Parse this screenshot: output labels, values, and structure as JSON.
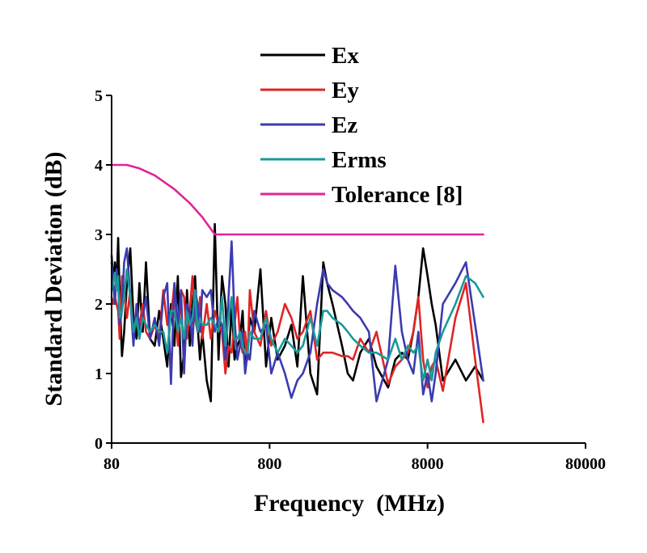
{
  "chart_data": {
    "type": "line",
    "xlabel": "Frequency  (MHz)",
    "ylabel": "Standard Deviation (dB)",
    "xscale": "log",
    "xlim": [
      80,
      80000
    ],
    "ylim": [
      0,
      5
    ],
    "xticks": [
      80,
      800,
      8000,
      80000
    ],
    "xtick_labels": [
      "80",
      "800",
      "8000",
      "80000"
    ],
    "yticks": [
      0,
      1,
      2,
      3,
      4,
      5
    ],
    "ytick_labels": [
      "0",
      "1",
      "2",
      "3",
      "4",
      "5"
    ],
    "grid": false,
    "legend_position": "top-center",
    "series": [
      {
        "name": "Ex",
        "color": "#000000",
        "x": [
          80,
          82,
          84,
          86,
          88,
          90,
          93,
          96,
          100,
          105,
          110,
          115,
          120,
          126,
          132,
          140,
          150,
          160,
          170,
          180,
          190,
          200,
          210,
          220,
          230,
          240,
          250,
          260,
          270,
          280,
          290,
          300,
          320,
          340,
          360,
          380,
          400,
          420,
          440,
          460,
          480,
          500,
          520,
          540,
          560,
          580,
          600,
          640,
          700,
          760,
          820,
          900,
          1000,
          1100,
          1200,
          1300,
          1450,
          1600,
          1750,
          1850,
          2000,
          2300,
          2500,
          2700,
          3000,
          3400,
          3800,
          4500,
          5000,
          5500,
          6000,
          6500,
          7000,
          7500,
          8000,
          8500,
          9000,
          10000,
          12000,
          14000,
          16000,
          18000
        ],
        "y": [
          2.7,
          2.3,
          2.6,
          2.2,
          2.95,
          2.1,
          1.25,
          1.6,
          2.3,
          2.8,
          1.8,
          1.5,
          2.3,
          1.6,
          2.6,
          1.5,
          1.4,
          1.9,
          1.5,
          1.1,
          2.0,
          1.4,
          2.4,
          0.95,
          1.3,
          2.2,
          1.4,
          2.0,
          2.4,
          1.7,
          1.2,
          1.6,
          0.9,
          0.6,
          3.15,
          1.2,
          2.4,
          2.0,
          1.1,
          2.0,
          1.2,
          1.4,
          1.5,
          1.9,
          1.1,
          1.3,
          1.8,
          1.6,
          2.5,
          1.1,
          1.8,
          1.2,
          1.4,
          1.7,
          1.1,
          2.4,
          1.0,
          0.7,
          2.6,
          2.3,
          2.0,
          1.4,
          1.0,
          0.9,
          1.3,
          1.5,
          1.1,
          0.8,
          1.2,
          1.3,
          1.2,
          1.6,
          2.1,
          2.8,
          2.4,
          2.0,
          1.7,
          0.9,
          1.2,
          0.9,
          1.1,
          0.9
        ]
      },
      {
        "name": "Ey",
        "color": "#e02424",
        "x": [
          80,
          82,
          84,
          86,
          88,
          90,
          93,
          96,
          100,
          105,
          110,
          115,
          120,
          126,
          132,
          140,
          150,
          160,
          170,
          180,
          190,
          200,
          210,
          220,
          230,
          240,
          250,
          260,
          270,
          280,
          290,
          300,
          320,
          340,
          360,
          380,
          400,
          420,
          440,
          460,
          480,
          500,
          520,
          540,
          560,
          580,
          600,
          640,
          700,
          760,
          820,
          900,
          1000,
          1100,
          1200,
          1300,
          1450,
          1600,
          1750,
          1850,
          2000,
          2300,
          2500,
          2700,
          3000,
          3400,
          3800,
          4500,
          5000,
          5500,
          6000,
          6500,
          7000,
          7500,
          8000,
          8500,
          9000,
          10000,
          12000,
          14000,
          16000,
          18000
        ],
        "y": [
          2.1,
          2.0,
          2.1,
          2.0,
          1.9,
          1.5,
          2.4,
          2.2,
          1.8,
          2.2,
          1.5,
          1.9,
          1.7,
          2.0,
          1.6,
          1.5,
          1.7,
          1.5,
          2.2,
          1.7,
          1.8,
          2.3,
          1.4,
          2.2,
          2.1,
          1.5,
          1.9,
          2.4,
          1.8,
          1.6,
          2.1,
          1.5,
          2.0,
          1.5,
          1.9,
          1.7,
          1.6,
          1.0,
          1.4,
          1.3,
          1.7,
          2.1,
          1.5,
          1.3,
          1.6,
          1.2,
          2.2,
          1.6,
          1.4,
          1.9,
          1.4,
          1.6,
          2.0,
          1.8,
          1.5,
          1.6,
          1.9,
          1.2,
          1.3,
          1.3,
          1.3,
          1.25,
          1.25,
          1.2,
          1.5,
          1.3,
          1.6,
          0.85,
          1.1,
          1.2,
          1.3,
          1.6,
          2.1,
          1.2,
          0.8,
          1.1,
          1.2,
          0.75,
          1.8,
          2.3,
          1.2,
          0.3
        ]
      },
      {
        "name": "Ez",
        "color": "#3b3bb0",
        "x": [
          80,
          82,
          84,
          86,
          88,
          90,
          93,
          96,
          100,
          105,
          110,
          115,
          120,
          126,
          132,
          140,
          150,
          160,
          170,
          180,
          190,
          200,
          210,
          220,
          230,
          240,
          250,
          260,
          270,
          280,
          290,
          300,
          320,
          340,
          360,
          380,
          400,
          420,
          440,
          460,
          480,
          500,
          520,
          540,
          560,
          580,
          600,
          640,
          700,
          760,
          820,
          900,
          1000,
          1100,
          1200,
          1300,
          1450,
          1600,
          1750,
          1850,
          2000,
          2300,
          2500,
          2700,
          3000,
          3400,
          3800,
          4500,
          5000,
          5500,
          6000,
          6500,
          7000,
          7500,
          8000,
          8500,
          9000,
          10000,
          12000,
          14000,
          16000,
          18000
        ],
        "y": [
          2.6,
          2.3,
          2.0,
          2.5,
          2.3,
          1.7,
          1.9,
          2.6,
          2.8,
          2.1,
          1.4,
          2.0,
          1.6,
          1.8,
          2.1,
          1.5,
          1.8,
          1.4,
          2.1,
          2.3,
          0.85,
          2.3,
          1.7,
          2.2,
          1.0,
          2.0,
          1.9,
          1.4,
          2.2,
          2.0,
          1.6,
          2.2,
          2.1,
          2.2,
          1.6,
          1.8,
          1.7,
          1.2,
          2.1,
          2.9,
          1.8,
          1.2,
          1.4,
          1.6,
          1.0,
          1.3,
          1.2,
          1.9,
          1.6,
          1.7,
          1.0,
          1.3,
          1.0,
          0.65,
          0.9,
          1.0,
          1.3,
          2.0,
          2.5,
          2.3,
          2.2,
          2.1,
          2.0,
          1.9,
          1.8,
          1.6,
          0.6,
          1.2,
          2.55,
          1.6,
          1.2,
          1.0,
          1.6,
          0.7,
          1.0,
          0.6,
          1.0,
          2.0,
          2.3,
          2.6,
          1.7,
          0.9
        ]
      },
      {
        "name": "Erms",
        "color": "#1a9999",
        "x": [
          80,
          82,
          84,
          86,
          88,
          90,
          93,
          96,
          100,
          105,
          110,
          115,
          120,
          126,
          132,
          140,
          150,
          160,
          170,
          180,
          190,
          200,
          210,
          220,
          230,
          240,
          250,
          260,
          270,
          280,
          290,
          300,
          320,
          340,
          360,
          380,
          400,
          420,
          440,
          460,
          480,
          500,
          520,
          540,
          560,
          580,
          600,
          640,
          700,
          760,
          820,
          900,
          1000,
          1100,
          1200,
          1300,
          1450,
          1600,
          1750,
          1850,
          2000,
          2300,
          2500,
          2700,
          3000,
          3400,
          3800,
          4500,
          5000,
          5500,
          6000,
          6500,
          7000,
          7500,
          8000,
          8500,
          9000,
          10000,
          12000,
          14000,
          16000,
          18000
        ],
        "y": [
          2.2,
          2.3,
          2.45,
          2.2,
          2.4,
          1.8,
          1.9,
          2.1,
          2.5,
          2.1,
          1.6,
          1.8,
          1.5,
          1.8,
          1.7,
          1.6,
          1.7,
          1.6,
          1.6,
          1.3,
          1.9,
          1.9,
          1.6,
          1.8,
          1.5,
          1.9,
          1.7,
          1.8,
          2.2,
          1.6,
          1.8,
          1.7,
          1.7,
          1.8,
          1.7,
          1.6,
          2.1,
          1.4,
          1.8,
          2.1,
          1.5,
          1.5,
          1.6,
          1.4,
          1.3,
          1.3,
          1.6,
          1.5,
          1.5,
          1.8,
          1.5,
          1.3,
          1.5,
          1.4,
          1.3,
          1.4,
          1.8,
          1.4,
          1.9,
          1.9,
          1.8,
          1.7,
          1.6,
          1.5,
          1.4,
          1.3,
          1.3,
          1.2,
          1.5,
          1.2,
          1.4,
          1.3,
          1.4,
          0.9,
          1.2,
          0.9,
          1.3,
          1.6,
          2.0,
          2.4,
          2.3,
          2.1
        ]
      },
      {
        "name": "Tolerance [8]",
        "color": "#e0249a",
        "x": [
          80,
          100,
          120,
          150,
          200,
          250,
          300,
          360,
          400,
          600,
          1000,
          3000,
          8000,
          18000
        ],
        "y": [
          4.0,
          4.0,
          3.95,
          3.85,
          3.65,
          3.45,
          3.25,
          3.0,
          3.0,
          3.0,
          3.0,
          3.0,
          3.0,
          3.0
        ]
      }
    ]
  }
}
